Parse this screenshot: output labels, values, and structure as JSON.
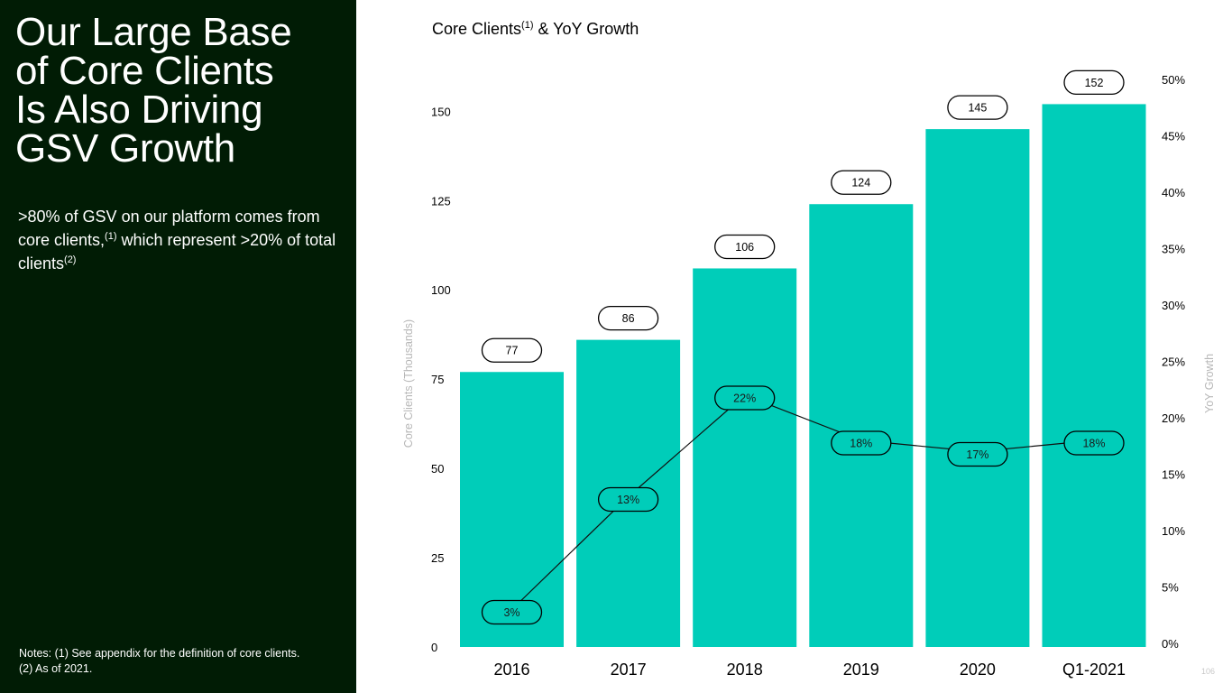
{
  "left_panel": {
    "headline_lines": [
      "Our Large Base",
      "of Core Clients",
      "Is Also Driving",
      "GSV Growth"
    ],
    "body": {
      "part1": ">80% of GSV on our platform comes from core clients,",
      "sup1": "(1)",
      "part2": " which represent >20% of total clients",
      "sup2": "(2)"
    },
    "notes": [
      "Notes: (1) See appendix for the definition of core clients.",
      "(2) As of 2021."
    ]
  },
  "chart_title": {
    "text": "Core Clients",
    "sup": "(1)",
    "suffix": " & YoY Growth"
  },
  "page_number": "106",
  "colors": {
    "panel_bg": "#011c05",
    "bar": "#00cdb9",
    "line": "#111111",
    "label_fill": "#ffffff",
    "pct_label_fill": "#00cdb9"
  },
  "chart_data": {
    "type": "bar",
    "title": "Core Clients(1) & YoY Growth",
    "categories": [
      "2016",
      "2017",
      "2018",
      "2019",
      "2020",
      "Q1-2021"
    ],
    "series": [
      {
        "axis": "left",
        "type": "bar",
        "values": [
          77,
          86,
          106,
          124,
          145,
          152
        ],
        "labels": [
          "77",
          "86",
          "106",
          "124",
          "145",
          "152"
        ]
      },
      {
        "axis": "right",
        "type": "line",
        "values": [
          3,
          13,
          22,
          18,
          17,
          18
        ],
        "labels": [
          "3%",
          "13%",
          "22%",
          "18%",
          "17%",
          "18%"
        ]
      }
    ],
    "ylabel": "Core Clients (Thousands)",
    "y2label": "YoY Growth",
    "ylim": [
      0,
      166
    ],
    "y2lim": [
      0,
      50
    ],
    "yticks": [
      "0",
      "25",
      "50",
      "75",
      "100",
      "125",
      "150"
    ],
    "y2ticks": [
      "0%",
      "5%",
      "10%",
      "15%",
      "20%",
      "25%",
      "30%",
      "35%",
      "40%",
      "45%",
      "50%"
    ],
    "grid": false,
    "legend": "none"
  }
}
